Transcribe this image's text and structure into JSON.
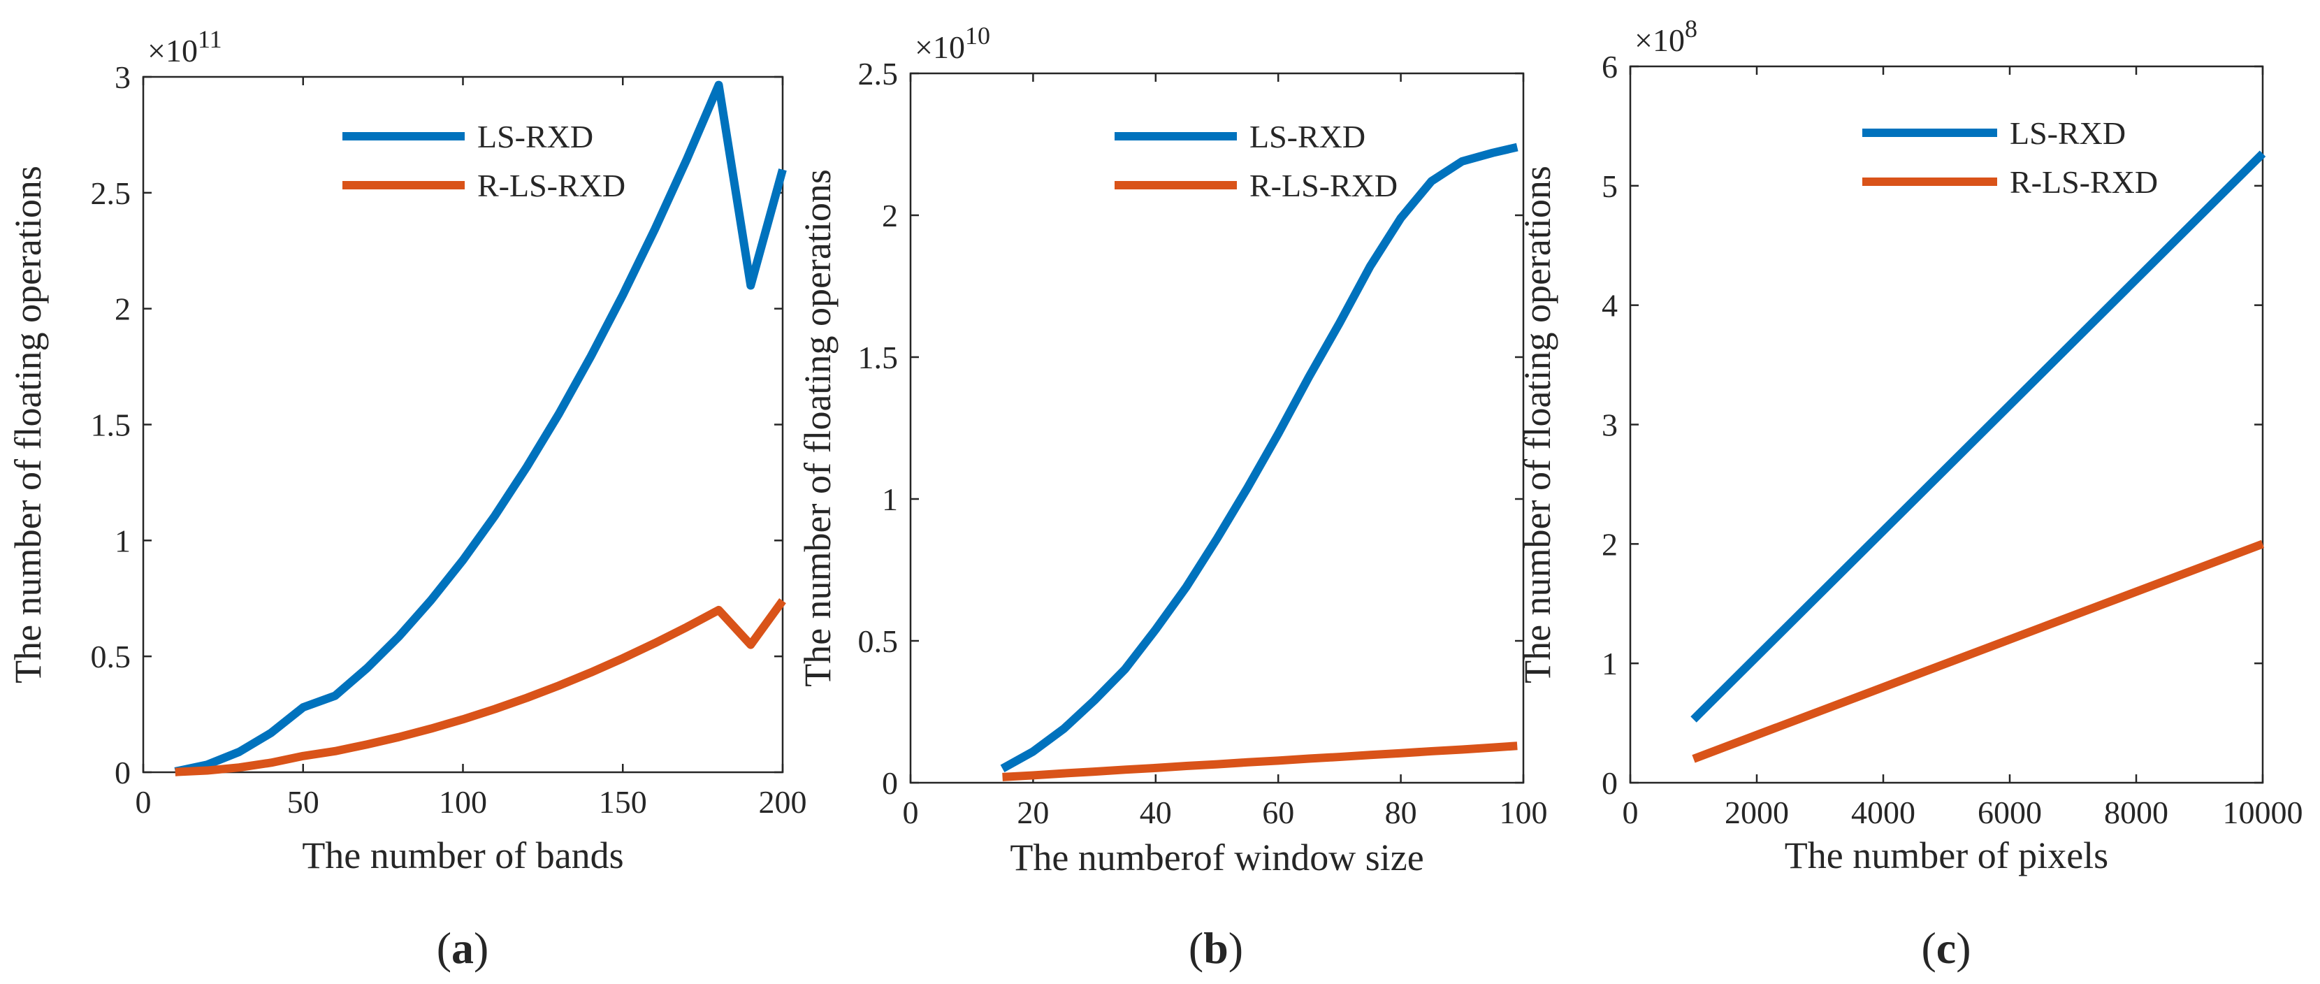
{
  "figure": {
    "panels": [
      {
        "id": "a",
        "label_prefix": "(",
        "label_letter": "a",
        "label_suffix": ")"
      },
      {
        "id": "b",
        "label_prefix": "(",
        "label_letter": "b",
        "label_suffix": ")"
      },
      {
        "id": "c",
        "label_prefix": "(",
        "label_letter": "c",
        "label_suffix": ")"
      }
    ]
  },
  "colors": {
    "ls_rxd": "#0072BD",
    "r_ls_rxd": "#D95319",
    "axis": "#262626"
  },
  "chart_data": [
    {
      "type": "line",
      "title": "",
      "xlabel": "The number of bands",
      "ylabel": "The number of floating operations",
      "exponent_base": "×10",
      "exponent_power": "11",
      "xlim": [
        0,
        200
      ],
      "ylim": [
        0,
        3
      ],
      "xticks": [
        0,
        50,
        100,
        150,
        200
      ],
      "yticks": [
        0,
        0.5,
        1,
        1.5,
        2,
        2.5,
        3
      ],
      "legend_position": "top-center",
      "x": [
        10,
        20,
        30,
        40,
        50,
        60,
        70,
        80,
        90,
        100,
        110,
        120,
        130,
        140,
        150,
        160,
        170,
        180,
        190,
        200
      ],
      "series": [
        {
          "name": "LS-RXD",
          "color": "#0072BD",
          "values": [
            0.0033,
            0.0325,
            0.0878,
            0.17,
            0.28,
            0.33,
            0.449,
            0.586,
            0.742,
            0.915,
            1.107,
            1.318,
            1.546,
            1.794,
            2.059,
            2.342,
            2.644,
            2.965,
            2.1,
            2.6
          ]
        },
        {
          "name": "R-LS-RXD",
          "color": "#D95319",
          "values": [
            0.0009,
            0.0074,
            0.0206,
            0.0412,
            0.07,
            0.091,
            0.1199,
            0.1519,
            0.1882,
            0.2283,
            0.2726,
            0.3211,
            0.3737,
            0.4305,
            0.4915,
            0.5567,
            0.6261,
            0.6997,
            0.55,
            0.74
          ]
        }
      ]
    },
    {
      "type": "line",
      "title": "",
      "xlabel": "The numberof window size",
      "ylabel": "The number of floating operations",
      "exponent_base": "×10",
      "exponent_power": "10",
      "xlim": [
        0,
        100
      ],
      "ylim": [
        0,
        2.5
      ],
      "xticks": [
        0,
        20,
        40,
        60,
        80,
        100
      ],
      "yticks": [
        0,
        0.5,
        1,
        1.5,
        2,
        2.5
      ],
      "legend_position": "top-center",
      "x": [
        15,
        20,
        25,
        30,
        35,
        40,
        45,
        50,
        55,
        60,
        65,
        70,
        75,
        80,
        85,
        90,
        95,
        99
      ],
      "series": [
        {
          "name": "LS-RXD",
          "color": "#0072BD",
          "values": [
            0.05,
            0.11,
            0.19,
            0.29,
            0.4,
            0.54,
            0.69,
            0.86,
            1.04,
            1.23,
            1.43,
            1.62,
            1.82,
            1.99,
            2.12,
            2.19,
            2.22,
            2.24
          ]
        },
        {
          "name": "R-LS-RXD",
          "color": "#D95319",
          "values": [
            0.02,
            0.026,
            0.033,
            0.039,
            0.046,
            0.052,
            0.059,
            0.065,
            0.072,
            0.078,
            0.085,
            0.091,
            0.098,
            0.104,
            0.111,
            0.117,
            0.124,
            0.13
          ]
        }
      ]
    },
    {
      "type": "line",
      "title": "",
      "xlabel": "The number of pixels",
      "ylabel": "The number of floating operations",
      "exponent_base": "×10",
      "exponent_power": "8",
      "xlim": [
        0,
        10000
      ],
      "ylim": [
        0,
        6
      ],
      "xticks": [
        0,
        2000,
        4000,
        6000,
        8000,
        10000
      ],
      "yticks": [
        0,
        1,
        2,
        3,
        4,
        5,
        6
      ],
      "legend_position": "top-center",
      "x": [
        1000,
        10000
      ],
      "series": [
        {
          "name": "LS-RXD",
          "color": "#0072BD",
          "values": [
            0.53,
            5.27
          ]
        },
        {
          "name": "R-LS-RXD",
          "color": "#D95319",
          "values": [
            0.2,
            2.0
          ]
        }
      ]
    }
  ]
}
